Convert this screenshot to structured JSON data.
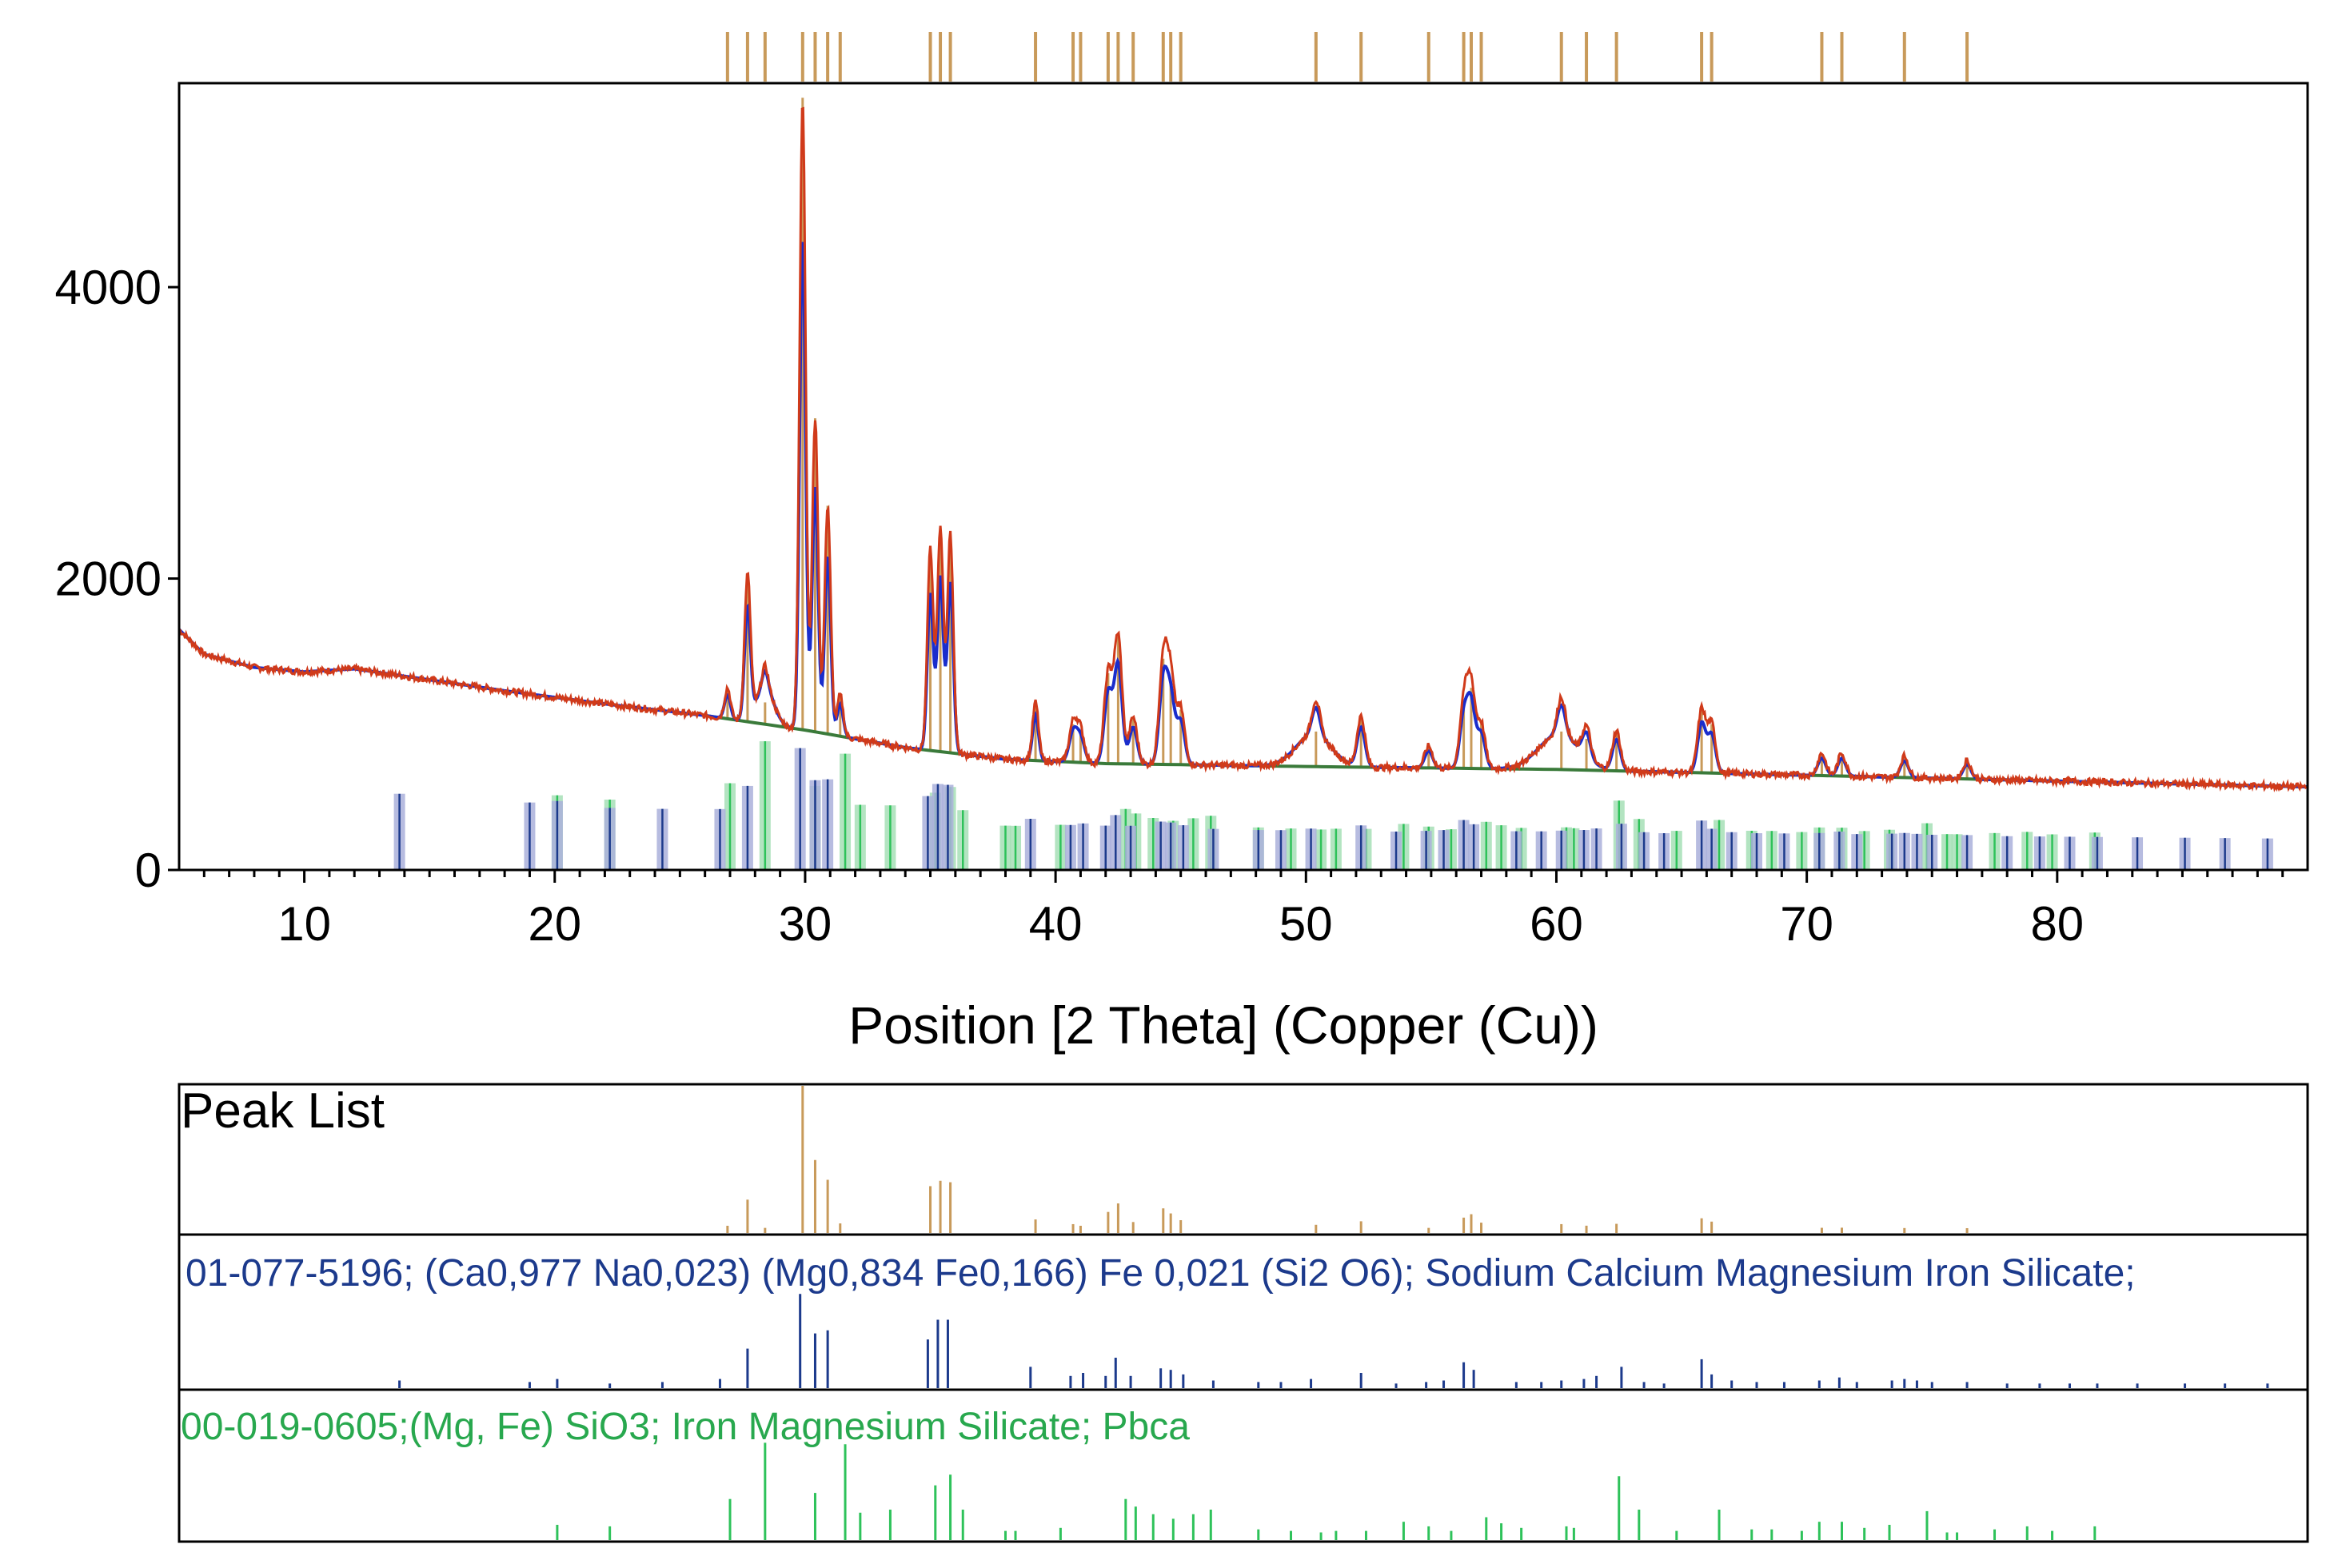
{
  "colors": {
    "observed": "#d03a1a",
    "fit": "#1a2dcc",
    "background": "#3a7a3a",
    "peak_list": "#c89a5a",
    "ref1": "#1c3a8c",
    "ref1_fill": "#aab0da",
    "ref2": "#2ec25a",
    "ref2_fill": "#a6dfb6",
    "frame": "#000000"
  },
  "chart_data": {
    "type": "line",
    "title": "",
    "xlabel": "Position [2 Theta] (Copper (Cu))",
    "ylabel": "",
    "xlim": [
      5,
      90
    ],
    "ylim": [
      0,
      5400
    ],
    "xticks": [
      10,
      20,
      30,
      40,
      50,
      60,
      70,
      80
    ],
    "xtick_labels": [
      "10",
      "20",
      "30",
      "40",
      "50",
      "60",
      "70",
      "80"
    ],
    "yticks": [
      0,
      2000,
      4000
    ],
    "ytick_labels": [
      "0",
      "2000",
      "4000"
    ],
    "background_curve": [
      [
        5,
        1650
      ],
      [
        6,
        1480
      ],
      [
        8,
        1390
      ],
      [
        10,
        1360
      ],
      [
        12,
        1380
      ],
      [
        14,
        1330
      ],
      [
        18,
        1230
      ],
      [
        22,
        1140
      ],
      [
        26,
        1060
      ],
      [
        30,
        960
      ],
      [
        34,
        840
      ],
      [
        38,
        760
      ],
      [
        42,
        730
      ],
      [
        46,
        720
      ],
      [
        50,
        710
      ],
      [
        55,
        700
      ],
      [
        60,
        690
      ],
      [
        65,
        670
      ],
      [
        70,
        650
      ],
      [
        75,
        630
      ],
      [
        80,
        610
      ],
      [
        85,
        590
      ],
      [
        90,
        570
      ]
    ],
    "peak_list": {
      "label": "Peak List",
      "positions": [
        26.9,
        27.7,
        28.4,
        29.9,
        30.4,
        30.9,
        31.4,
        35.0,
        35.4,
        35.8,
        39.2,
        40.7,
        41.0,
        42.1,
        42.5,
        43.1,
        44.3,
        44.6,
        45.0,
        50.4,
        52.2,
        54.9,
        56.3,
        56.6,
        57.0,
        60.2,
        61.2,
        62.4,
        65.8,
        66.2,
        70.6,
        71.4,
        73.9,
        76.4
      ],
      "intensities": [
        1250,
        2000,
        1150,
        5300,
        3100,
        2500,
        1200,
        2200,
        2350,
        2300,
        1150,
        1000,
        950,
        1350,
        1600,
        1050,
        1450,
        1300,
        1100,
        950,
        1050,
        850,
        1150,
        1250,
        1000,
        950,
        900,
        950,
        1100,
        1000,
        800,
        800,
        780,
        750
      ]
    },
    "series": [
      {
        "name": "01-077-5196; (Ca0,977 Na0,023) (Mg0,834 Fe0,166) Fe 0,021 (Si2 O6); Sodium Calcium Magnesium Iron Silicate;",
        "positions": [
          13.8,
          19.0,
          20.1,
          22.2,
          24.3,
          26.6,
          27.7,
          29.8,
          30.4,
          30.9,
          34.9,
          35.3,
          35.7,
          39.0,
          40.6,
          41.1,
          42.0,
          42.4,
          43.0,
          44.2,
          44.6,
          45.1,
          46.3,
          48.1,
          49.0,
          50.2,
          52.2,
          53.6,
          54.8,
          55.5,
          56.3,
          56.7,
          58.4,
          59.4,
          60.2,
          61.1,
          61.6,
          62.6,
          63.5,
          64.3,
          65.8,
          66.2,
          67.0,
          68.0,
          69.1,
          70.5,
          71.3,
          72.0,
          73.4,
          73.9,
          74.4,
          75.0,
          76.4,
          78.0,
          79.3,
          80.5,
          81.6,
          83.2,
          85.1,
          86.7,
          88.4
        ],
        "values": [
          5,
          4,
          6,
          3,
          4,
          6,
          26,
          62,
          36,
          38,
          32,
          45,
          45,
          14,
          8,
          10,
          8,
          20,
          8,
          13,
          12,
          9,
          5,
          4,
          4,
          6,
          10,
          3,
          4,
          5,
          17,
          12,
          4,
          4,
          5,
          6,
          8,
          14,
          4,
          3,
          19,
          9,
          5,
          4,
          4,
          5,
          7,
          4,
          5,
          6,
          5,
          4,
          4,
          3,
          3,
          3,
          3,
          3,
          3,
          3,
          3
        ]
      },
      {
        "name": "00-019-0605;(Mg, Fe) SiO3; Iron Magnesium Silicate; Pbca",
        "positions": [
          20.1,
          22.2,
          27.0,
          28.4,
          30.4,
          31.6,
          32.2,
          33.4,
          35.2,
          35.8,
          36.3,
          38.0,
          38.4,
          40.2,
          42.8,
          43.2,
          43.9,
          44.7,
          45.5,
          46.2,
          48.1,
          49.4,
          50.6,
          51.2,
          52.4,
          53.9,
          54.9,
          55.8,
          57.2,
          57.8,
          58.6,
          60.4,
          60.7,
          62.5,
          63.3,
          64.8,
          66.5,
          67.8,
          68.6,
          69.8,
          70.5,
          71.4,
          72.3,
          73.3,
          74.8,
          75.6,
          76.0,
          77.5,
          78.8,
          79.8,
          81.5
        ],
        "values": [
          10,
          9,
          27,
          64,
          31,
          63,
          18,
          20,
          36,
          43,
          20,
          6,
          6,
          8,
          27,
          22,
          17,
          14,
          17,
          20,
          7,
          6,
          5,
          6,
          6,
          12,
          9,
          6,
          15,
          11,
          8,
          9,
          8,
          42,
          20,
          6,
          20,
          7,
          7,
          6,
          12,
          12,
          8,
          10,
          19,
          5,
          5,
          7,
          9,
          6,
          9
        ]
      }
    ]
  }
}
